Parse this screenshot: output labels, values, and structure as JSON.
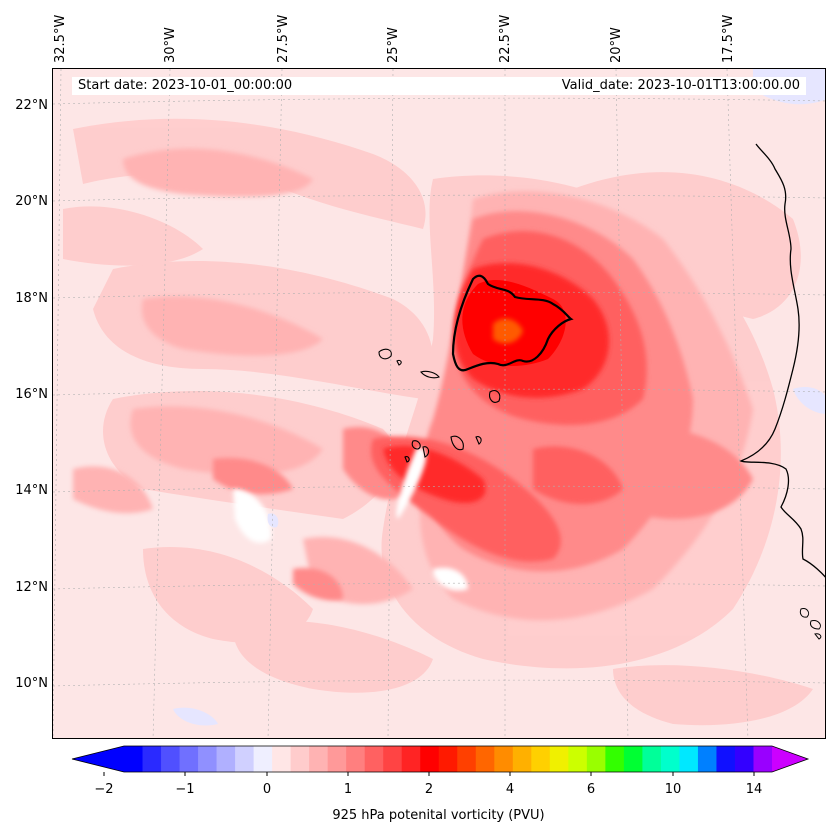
{
  "header": {
    "start_date": "Start date: 2023-10-01_00:00:00",
    "valid_date": "Valid_date: 2023-10-01T13:00:00.00"
  },
  "axes": {
    "lon_labels": [
      "32.5°W",
      "30°W",
      "27.5°W",
      "25°W",
      "22.5°W",
      "20°W",
      "17.5°W"
    ],
    "lat_labels": [
      "22°N",
      "20°N",
      "18°N",
      "16°N",
      "14°N",
      "12°N",
      "10°N"
    ]
  },
  "colorbar": {
    "label": "925 hPa potenital vorticity (PVU)",
    "tick_labels": [
      "−2",
      "−1",
      "0",
      "1",
      "2",
      "4",
      "6",
      "10",
      "14"
    ],
    "colors": [
      "#0000ff",
      "#2a2aff",
      "#5050ff",
      "#7070ff",
      "#9090ff",
      "#b0b0ff",
      "#d0d0ff",
      "#efefff",
      "#ffe6e6",
      "#ffcccc",
      "#ffb3b3",
      "#ff9999",
      "#ff7f7f",
      "#ff6161",
      "#ff4444",
      "#ff2424",
      "#ff0000",
      "#ff1a00",
      "#ff4000",
      "#ff6600",
      "#ff8c00",
      "#ffb000",
      "#ffd000",
      "#f0f000",
      "#ccff00",
      "#99ff00",
      "#33ff00",
      "#00ff33",
      "#00ff99",
      "#00ffcc",
      "#00e8ff",
      "#0080ff",
      "#1010ff",
      "#3300ff",
      "#9900ff"
    ],
    "extend_low_color": "#0000ff",
    "extend_high_color": "#cc00ff"
  },
  "map": {
    "background_level_color": "#fde6e6",
    "feature_colors": {
      "light_pink": "#ffcccc",
      "pink": "#ffb3b3",
      "salmon": "#ff8a8a",
      "red_light": "#ff6161",
      "red": "#ff2a2a",
      "red_dark": "#ff0000",
      "orange": "#ff5a00",
      "white": "#ffffff",
      "lavender": "#e6e6ff",
      "coast": "#000000"
    }
  }
}
